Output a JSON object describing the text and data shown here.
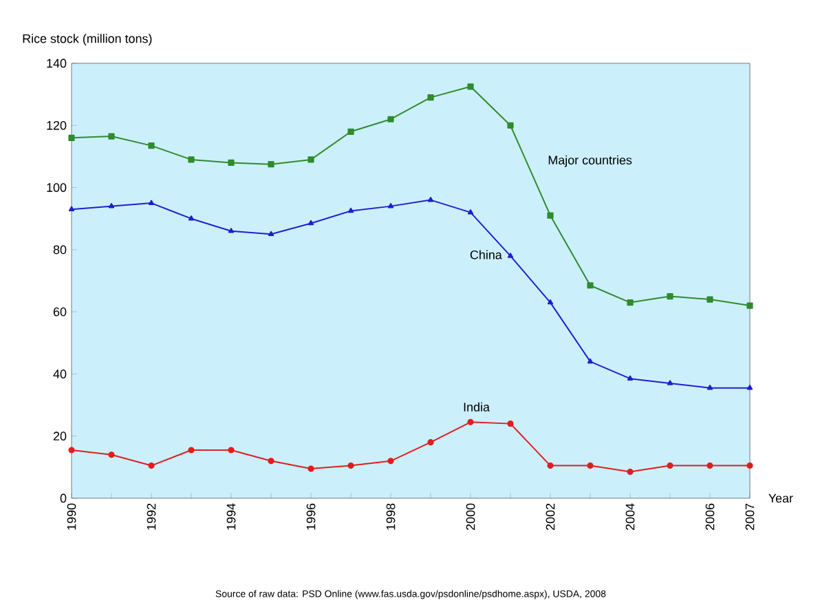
{
  "chart_data": {
    "type": "line",
    "ylabel": "Rice stock (million tons)",
    "xlabel": "Year",
    "annotations": [
      "Source of raw data: PSD Online (www.fas.usda.gov/psdonline/psdhome.aspx), USDA, 2008"
    ],
    "x": [
      1990,
      1991,
      1992,
      1993,
      1994,
      1995,
      1996,
      1997,
      1998,
      1999,
      2000,
      2001,
      2002,
      2003,
      2004,
      2005,
      2006,
      2007
    ],
    "xlim": [
      1990,
      2007
    ],
    "xticks": [
      1990,
      {
        "value": 1991,
        "label": null
      },
      1992,
      {
        "value": 1993,
        "label": null
      },
      1994,
      {
        "value": 1995,
        "label": null
      },
      1996,
      {
        "value": 1997,
        "label": null
      },
      1998,
      {
        "value": 1999,
        "label": null
      },
      2000,
      {
        "value": 2001,
        "label": null
      },
      2002,
      {
        "value": 2003,
        "label": null
      },
      2004,
      {
        "value": 2005,
        "label": null
      },
      2006,
      2007
    ],
    "ylim": [
      0,
      140
    ],
    "yticks": [
      0,
      20,
      40,
      60,
      80,
      100,
      120,
      140
    ],
    "grid": false,
    "line_style": "solid",
    "series": [
      {
        "name": "Major countries",
        "color": "#2e8b2e",
        "marker": "square",
        "values": [
          116,
          116.5,
          113.5,
          109,
          108,
          107.5,
          109,
          118,
          122,
          129,
          132.5,
          120,
          91,
          68.5,
          63,
          65,
          64,
          62
        ]
      },
      {
        "name": "China",
        "color": "#1f1fd0",
        "marker": "triangle",
        "values": [
          93,
          94,
          95,
          90,
          86,
          85,
          88.5,
          92.5,
          94,
          96,
          92,
          78,
          63,
          44,
          38.5,
          37,
          35.5,
          35.5
        ]
      },
      {
        "name": "India",
        "color": "#e01e1e",
        "marker": "circle",
        "values": [
          15.5,
          14,
          10.5,
          15.5,
          15.5,
          12,
          9.5,
          10.5,
          12,
          18,
          24.5,
          24,
          10.5,
          10.5,
          8.5,
          10.5,
          10.5,
          10.5
        ]
      }
    ]
  }
}
